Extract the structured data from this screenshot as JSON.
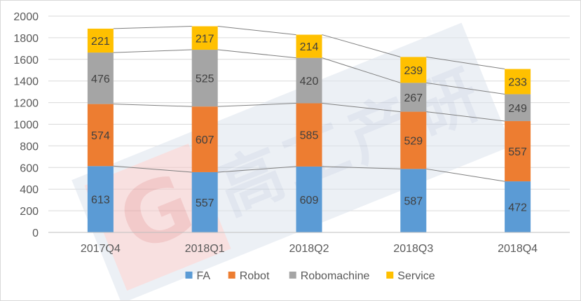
{
  "chart_data": {
    "type": "bar",
    "stacked": true,
    "title": "",
    "xlabel": "",
    "ylabel": "",
    "ylim": [
      0,
      2000
    ],
    "ytick_step": 200,
    "grid": true,
    "legend_position": "bottom",
    "categories": [
      "2017Q4",
      "2018Q1",
      "2018Q2",
      "2018Q3",
      "2018Q4"
    ],
    "series": [
      {
        "name": "FA",
        "color": "#5b9bd5",
        "values": [
          613,
          557,
          609,
          587,
          472
        ]
      },
      {
        "name": "Robot",
        "color": "#ed7d31",
        "values": [
          574,
          607,
          585,
          529,
          557
        ]
      },
      {
        "name": "Robomachine",
        "color": "#a5a5a5",
        "values": [
          476,
          525,
          420,
          267,
          249
        ]
      },
      {
        "name": "Service",
        "color": "#ffc000",
        "values": [
          221,
          217,
          214,
          239,
          233
        ]
      }
    ],
    "series_lines": true
  },
  "watermark": {
    "logo_mark": "G",
    "characters": [
      "高",
      "工",
      "产",
      "研"
    ]
  }
}
